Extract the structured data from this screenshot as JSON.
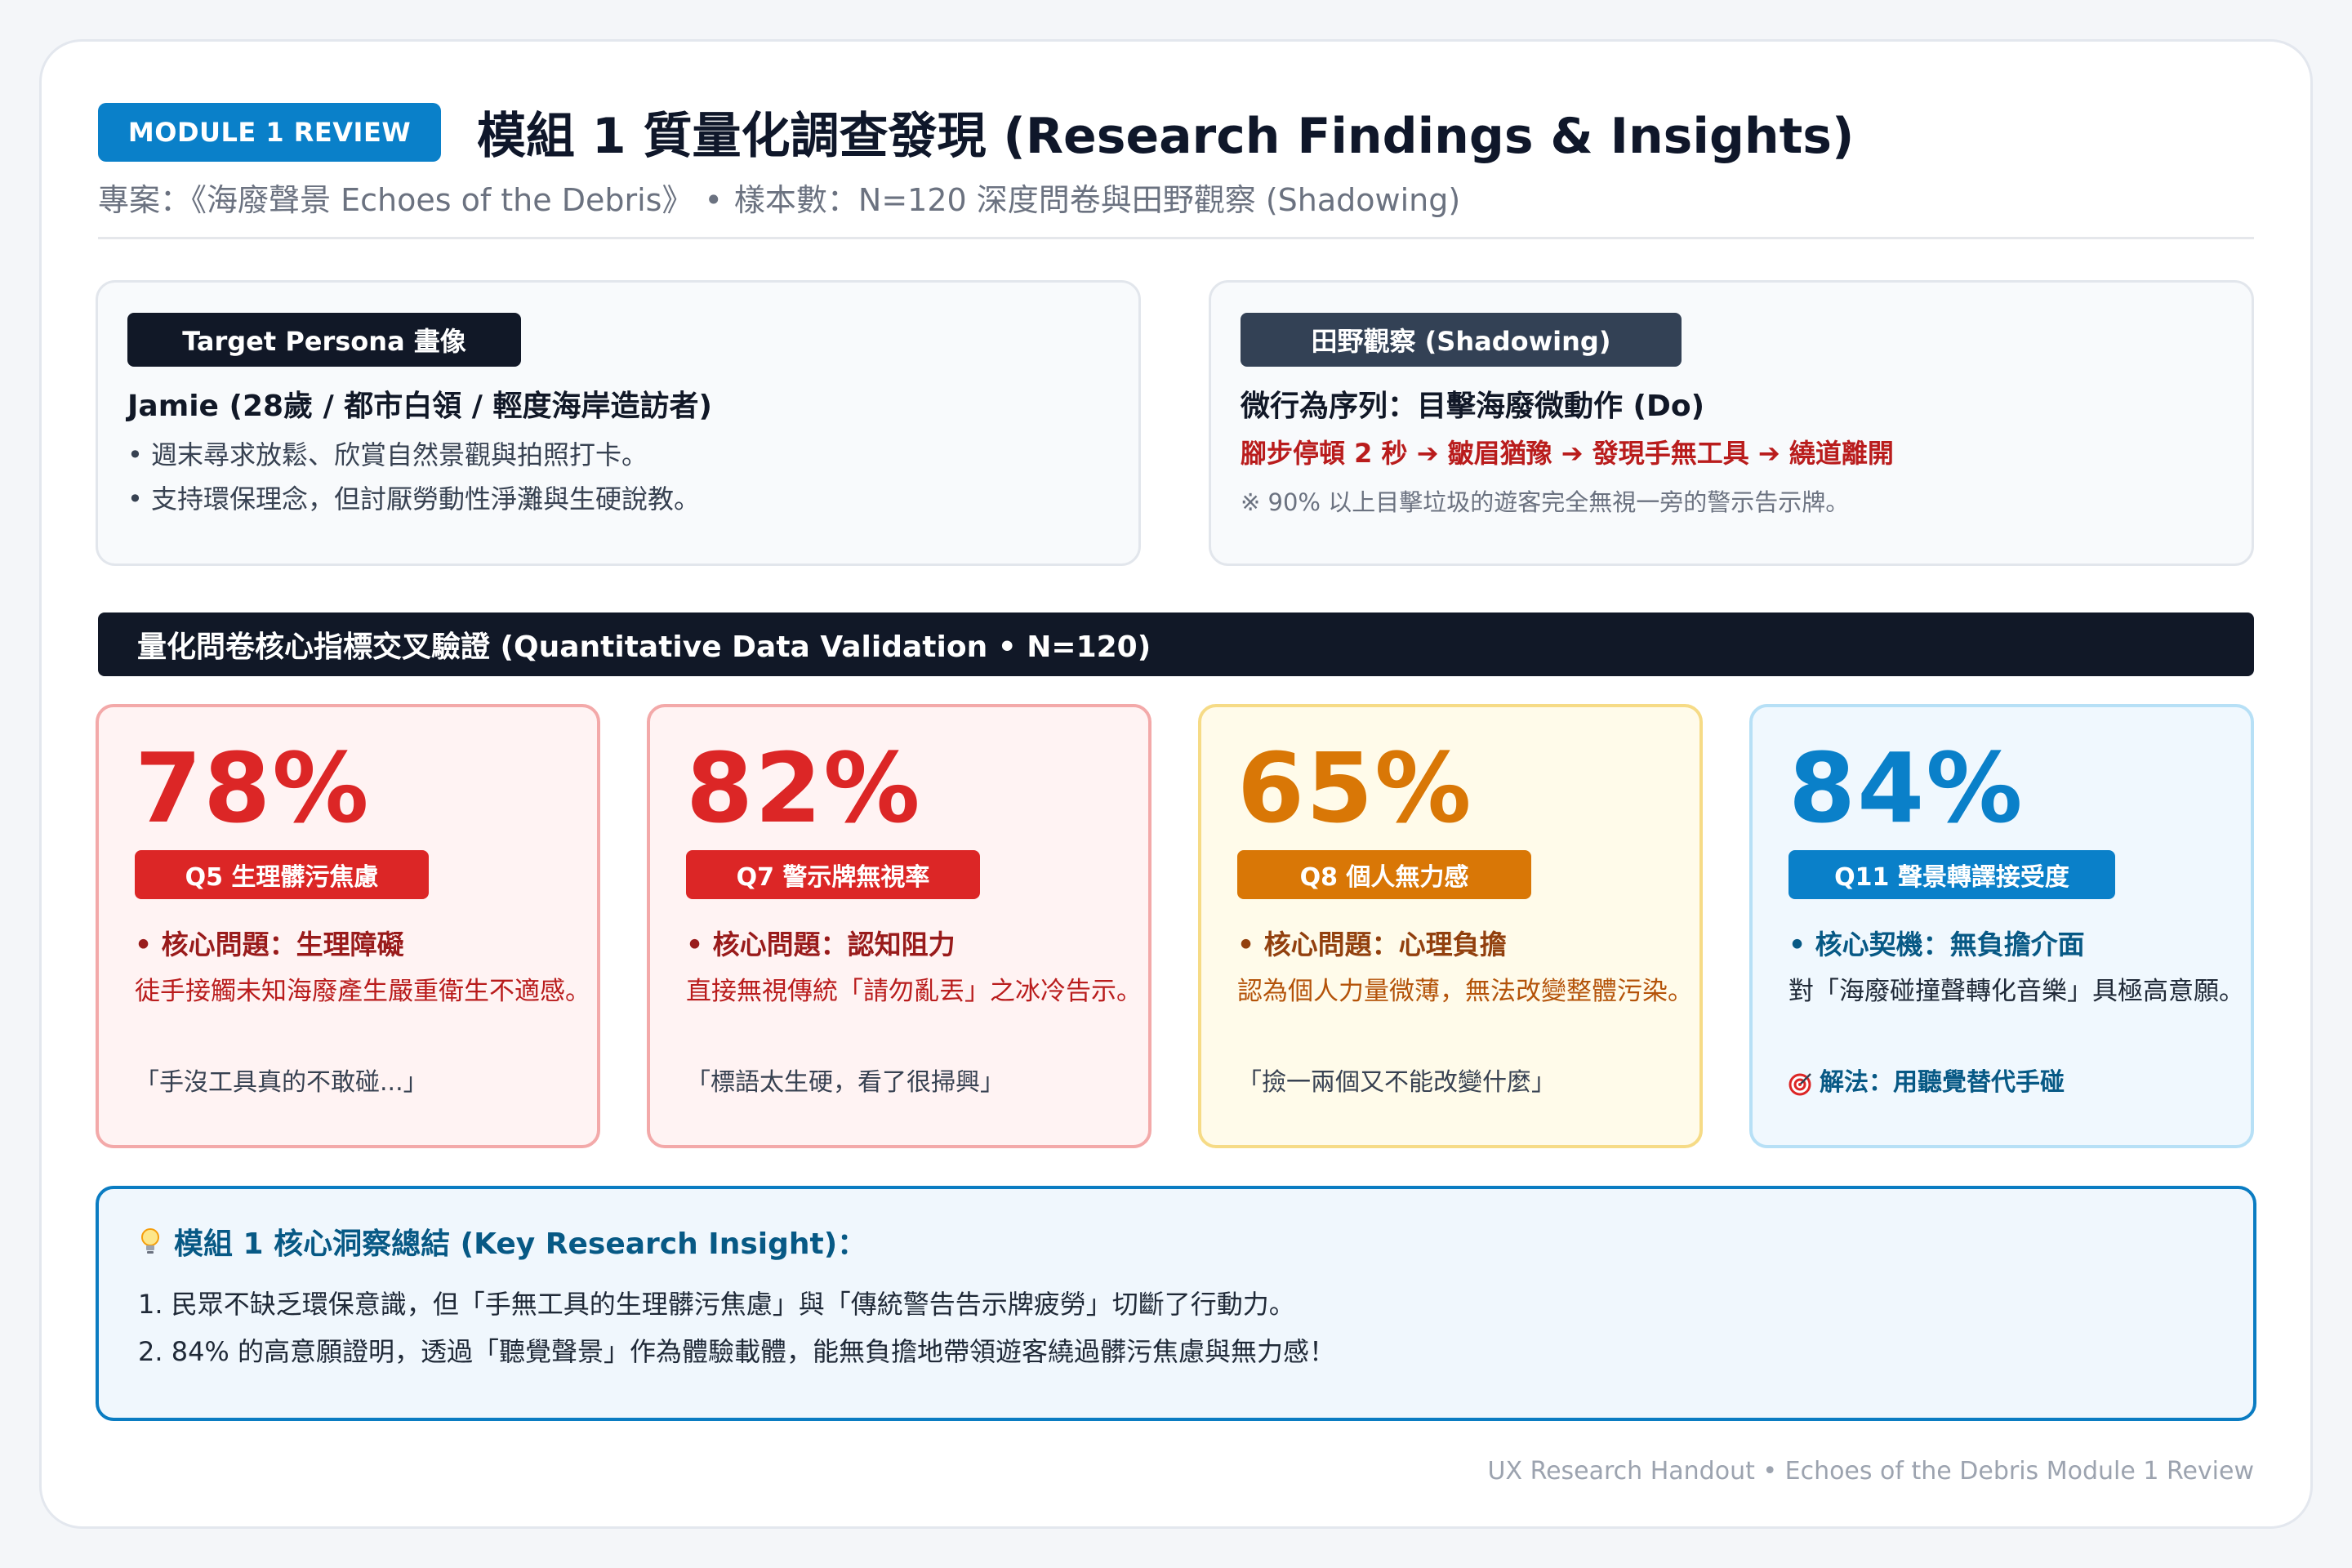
{
  "header": {
    "badge": "MODULE 1 REVIEW",
    "title": "模組 1 質量化調查發現 (Research Findings & Insights)",
    "subtitle_project": "專案：《海廢聲景 Echoes of the Debris》",
    "subtitle_sample": "樣本數：N=120 深度問卷與田野觀察 (Shadowing)"
  },
  "persona": {
    "tag": "Target Persona 畫像",
    "heading": "Jamie (28歲 / 都市白領 / 輕度海岸造訪者)",
    "bullets": [
      "• 週末尋求放鬆、欣賞自然景觀與拍照打卡。",
      "• 支持環保理念，但討厭勞動性淨灘與生硬說教。"
    ]
  },
  "shadowing": {
    "tag": "田野觀察 (Shadowing)",
    "heading": "微行為序列：目擊海廢微動作 (Do)",
    "sequence": "腳步停頓 2 秒 ➔ 皺眉猶豫 ➔ 發現手無工具 ➔ 繞道離開",
    "note": "※ 90% 以上目擊垃圾的遊客完全無視一旁的警示告示牌。"
  },
  "section": {
    "title": "量化問卷核心指標交叉驗證 (Quantitative Data Validation • N=120)"
  },
  "stats": [
    {
      "value": "78%",
      "tag": "Q5 生理髒污焦慮",
      "issue": "• 核心問題：生理障礙",
      "desc": "徒手接觸未知海廢產生嚴重衛生不適感。",
      "quote": "「手沒工具真的不敢碰...」",
      "value_pct": 78
    },
    {
      "value": "82%",
      "tag": "Q7 警示牌無視率",
      "issue": "• 核心問題：認知阻力",
      "desc": "直接無視傳統「請勿亂丟」之冰冷告示。",
      "quote": "「標語太生硬，看了很掃興」",
      "value_pct": 82
    },
    {
      "value": "65%",
      "tag": "Q8 個人無力感",
      "issue": "• 核心問題：心理負擔",
      "desc": "認為個人力量微薄，無法改變整體污染。",
      "quote": "「撿一兩個又不能改變什麼」",
      "value_pct": 65
    },
    {
      "value": "84%",
      "tag": "Q11 聲景轉譯接受度",
      "issue": "• 核心契機：無負擔介面",
      "desc": "對「海廢碰撞聲轉化音樂」具極高意願。",
      "quote": "解法：用聽覺替代手碰",
      "quote_icon": "target-icon",
      "value_pct": 84
    }
  ],
  "insight": {
    "title": "模組 1 核心洞察總結 (Key Research Insight)：",
    "lines": [
      "1. 民眾不缺乏環保意識，但「手無工具的生理髒污焦慮」與「傳統警告告示牌疲勞」切斷了行動力。",
      "2. 84% 的高意願證明，透過「聽覺聲景」作為體驗載體，能無負擔地帶領遊客繞過髒污焦慮與無力感！"
    ]
  },
  "footer": "UX Research Handout • Echoes of the Debris Module 1 Review",
  "colors": {
    "red": "#dc2626",
    "amber": "#d97706",
    "blue": "#0a80c9",
    "dark": "#111827"
  }
}
